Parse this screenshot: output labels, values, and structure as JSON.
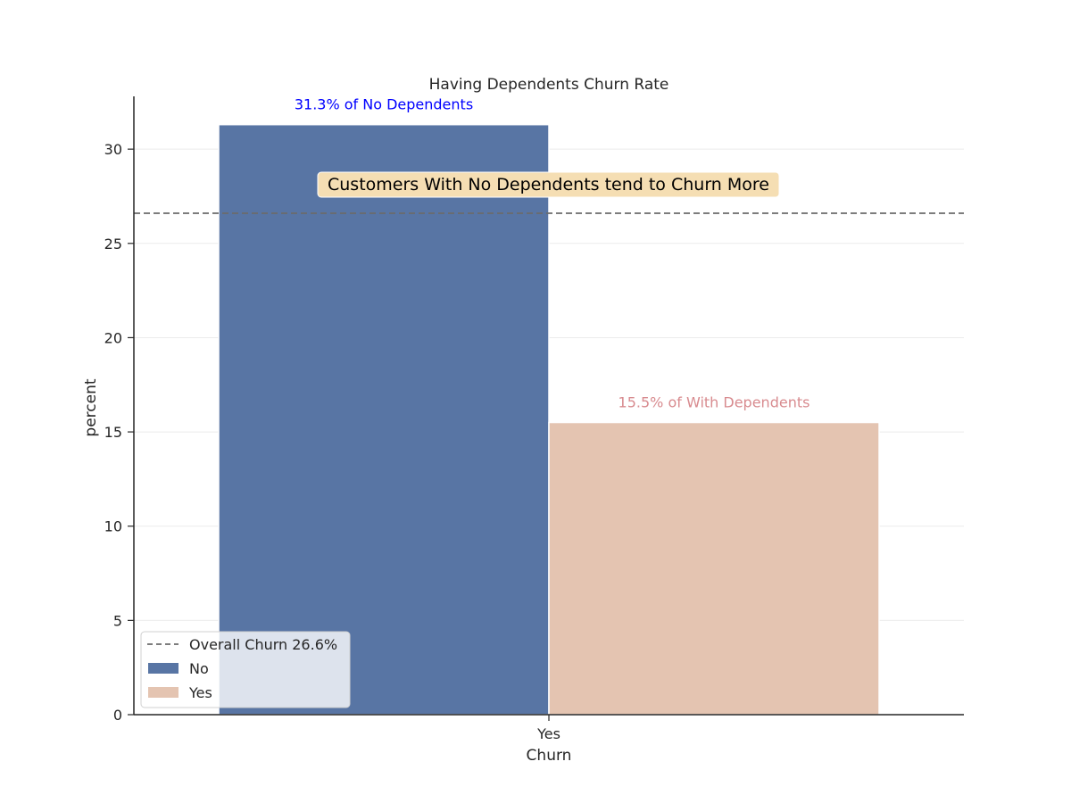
{
  "chart_data": {
    "type": "bar",
    "title": "Having Dependents Churn Rate",
    "xlabel": "Churn",
    "ylabel": "percent",
    "categories": [
      "Yes"
    ],
    "series": [
      {
        "name": "No",
        "values": [
          31.3
        ],
        "color": "#5875a4"
      },
      {
        "name": "Yes",
        "values": [
          15.5
        ],
        "color": "#e4c4b1"
      }
    ],
    "ylim": [
      0,
      32.8
    ],
    "yticks": [
      "0",
      "5",
      "10",
      "15",
      "20",
      "25",
      "30"
    ],
    "grid": true,
    "reference_line": {
      "label": "Overall Churn 26.6%",
      "value": 26.6,
      "color": "#6b6b6b",
      "style": "dashed"
    },
    "data_labels": [
      {
        "text": "31.3% of No Dependents",
        "color": "#0000ff"
      },
      {
        "text": "15.5% of With Dependents",
        "color": "#d88b8f"
      }
    ],
    "annotation": {
      "text": "Customers With No Dependents tend to Churn More",
      "background": "#f5deb3"
    },
    "legend": {
      "position": "lower-left",
      "entries": [
        "Overall Churn 26.6%",
        "No",
        "Yes"
      ]
    }
  }
}
